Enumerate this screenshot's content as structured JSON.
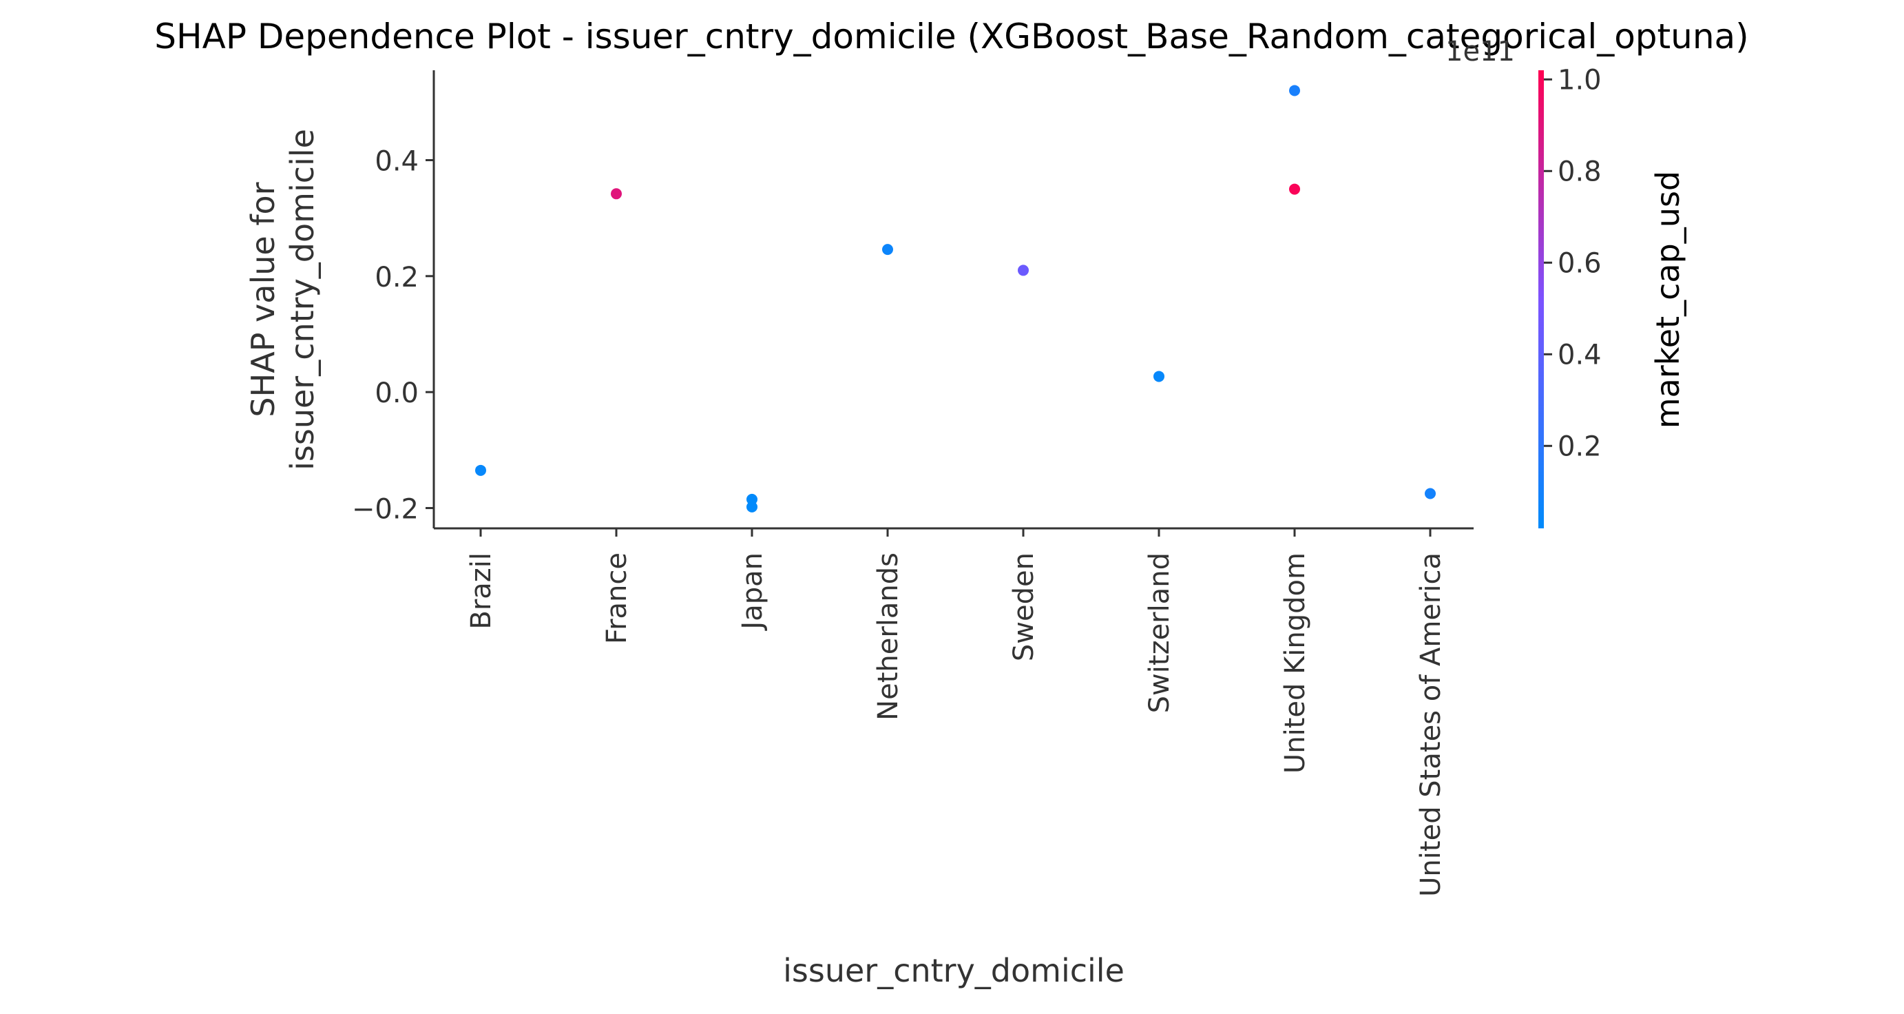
{
  "chart_data": {
    "type": "scatter",
    "title": "SHAP Dependence Plot - issuer_cntry_domicile (XGBoost_Base_Random_categorical_optuna)",
    "xlabel": "issuer_cntry_domicile",
    "ylabel_lines": [
      "SHAP value for",
      "issuer_cntry_domicile"
    ],
    "categories": [
      "Brazil",
      "France",
      "Japan",
      "Netherlands",
      "Sweden",
      "Switzerland",
      "United Kingdom",
      "United States of America"
    ],
    "ylim": [
      -0.235,
      0.555
    ],
    "yticks": [
      -0.2,
      0.0,
      0.2,
      0.4
    ],
    "ytick_labels": [
      "−0.2",
      "0.0",
      "0.2",
      "0.4"
    ],
    "grid": false,
    "points": [
      {
        "category": "Brazil",
        "y": -0.135,
        "color_value": 0.05
      },
      {
        "category": "France",
        "y": 0.342,
        "color_value": 0.9
      },
      {
        "category": "Japan",
        "y": -0.185,
        "color_value": 0.03
      },
      {
        "category": "Japan",
        "y": -0.198,
        "color_value": 0.03
      },
      {
        "category": "Netherlands",
        "y": 0.246,
        "color_value": 0.07
      },
      {
        "category": "Sweden",
        "y": 0.21,
        "color_value": 0.45
      },
      {
        "category": "Switzerland",
        "y": 0.027,
        "color_value": 0.05
      },
      {
        "category": "United Kingdom",
        "y": 0.52,
        "color_value": 0.12
      },
      {
        "category": "United Kingdom",
        "y": 0.35,
        "color_value": 1.0
      },
      {
        "category": "United States of America",
        "y": -0.175,
        "color_value": 0.1
      }
    ],
    "colorbar": {
      "label": "market_cap_usd",
      "offset_label": "1e11",
      "range": [
        0.02,
        1.02
      ],
      "ticks": [
        0.2,
        0.4,
        0.6,
        0.8,
        1.0
      ],
      "tick_labels": [
        "0.2",
        "0.4",
        "0.6",
        "0.8",
        "1.0"
      ],
      "color_low": "#008bfb",
      "color_mid": "#7c52ff",
      "color_high": "#ff0051"
    }
  }
}
